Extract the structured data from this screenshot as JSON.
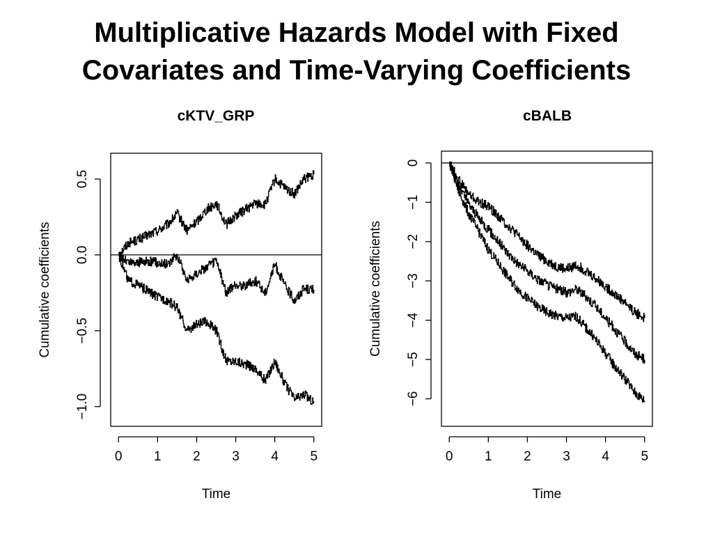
{
  "slide": {
    "title_line1": "Multiplicative Hazards Model with Fixed",
    "title_line2": "Covariates and Time-Varying Coefficients"
  },
  "chart_data": [
    {
      "type": "line",
      "title": "cKTV_GRP",
      "xlabel": "Time",
      "ylabel": "Cumulative coefficients",
      "xlim": [
        -0.2,
        5.2
      ],
      "ylim": [
        -1.13,
        0.67
      ],
      "xticks": [
        "0",
        "1",
        "2",
        "3",
        "4",
        "5"
      ],
      "yticks": [
        "−1.0",
        "−0.5",
        "0.0",
        "0.5"
      ],
      "reference_line_y": 0,
      "x": [
        0,
        0.25,
        0.5,
        0.75,
        1.0,
        1.25,
        1.5,
        1.75,
        2.0,
        2.25,
        2.5,
        2.75,
        3.0,
        3.25,
        3.5,
        3.75,
        4.0,
        4.25,
        4.5,
        4.75,
        5.0
      ],
      "series": [
        {
          "values": [
            0.0,
            0.08,
            0.1,
            0.13,
            0.16,
            0.2,
            0.27,
            0.16,
            0.22,
            0.3,
            0.34,
            0.2,
            0.26,
            0.3,
            0.34,
            0.33,
            0.5,
            0.44,
            0.4,
            0.5,
            0.53
          ]
        },
        {
          "values": [
            0.0,
            -0.05,
            -0.05,
            -0.04,
            -0.05,
            -0.06,
            0.0,
            -0.17,
            -0.12,
            -0.08,
            -0.04,
            -0.25,
            -0.2,
            -0.2,
            -0.17,
            -0.25,
            -0.06,
            -0.2,
            -0.3,
            -0.22,
            -0.23
          ]
        },
        {
          "values": [
            0.0,
            -0.17,
            -0.2,
            -0.24,
            -0.28,
            -0.3,
            -0.35,
            -0.5,
            -0.46,
            -0.44,
            -0.5,
            -0.7,
            -0.7,
            -0.72,
            -0.75,
            -0.83,
            -0.7,
            -0.85,
            -0.95,
            -0.92,
            -0.97
          ]
        }
      ]
    },
    {
      "type": "line",
      "title": "cBALB",
      "xlabel": "Time",
      "ylabel": "Cumulative coefficients",
      "xlim": [
        -0.2,
        5.2
      ],
      "ylim": [
        -6.7,
        0.3
      ],
      "xticks": [
        "0",
        "1",
        "2",
        "3",
        "4",
        "5"
      ],
      "yticks": [
        "−6",
        "−5",
        "−4",
        "−3",
        "−2",
        "−1",
        "0"
      ],
      "reference_line_y": 0,
      "x": [
        0,
        0.25,
        0.5,
        0.75,
        1.0,
        1.25,
        1.5,
        1.75,
        2.0,
        2.25,
        2.5,
        2.75,
        3.0,
        3.25,
        3.5,
        3.75,
        4.0,
        4.25,
        4.5,
        4.75,
        5.0
      ],
      "series": [
        {
          "values": [
            0.0,
            -0.45,
            -0.8,
            -1.0,
            -1.1,
            -1.35,
            -1.6,
            -1.85,
            -2.1,
            -2.35,
            -2.5,
            -2.65,
            -2.7,
            -2.6,
            -2.75,
            -2.95,
            -3.15,
            -3.35,
            -3.55,
            -3.8,
            -3.95
          ]
        },
        {
          "values": [
            0.0,
            -0.6,
            -1.05,
            -1.4,
            -1.7,
            -2.0,
            -2.3,
            -2.55,
            -2.75,
            -2.95,
            -3.1,
            -3.2,
            -3.3,
            -3.2,
            -3.4,
            -3.65,
            -3.95,
            -4.25,
            -4.55,
            -4.85,
            -5.0
          ]
        },
        {
          "values": [
            0.0,
            -0.75,
            -1.3,
            -1.75,
            -2.2,
            -2.55,
            -2.9,
            -3.2,
            -3.45,
            -3.65,
            -3.8,
            -3.9,
            -3.95,
            -3.9,
            -4.2,
            -4.5,
            -4.85,
            -5.2,
            -5.5,
            -5.85,
            -6.05
          ]
        }
      ]
    }
  ]
}
